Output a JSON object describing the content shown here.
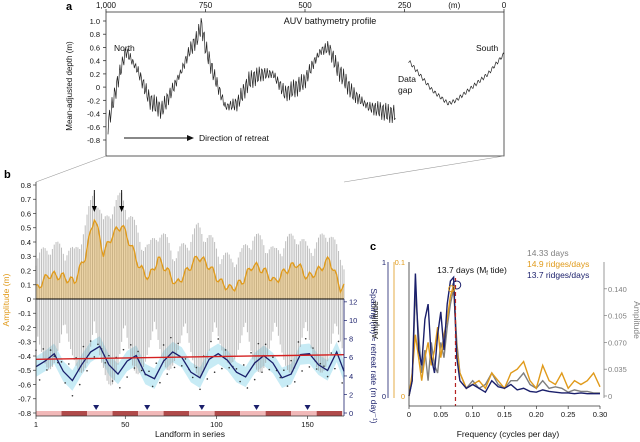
{
  "panel_labels": {
    "a": "a",
    "b": "b",
    "c": "c"
  },
  "colors": {
    "black": "#222222",
    "grey": "#8a8a8a",
    "orange": "#e09a1a",
    "navy": "#1a1f6b",
    "red": "#d42020",
    "cyan": "#b9e6f2",
    "darkred_dash": "#b52222",
    "light_grey": "#7f7f7f"
  },
  "chart_data": [
    {
      "panel": "a",
      "type": "line",
      "title": "AUV bathymetry profile",
      "top_axis_ticks": [
        "1,000",
        "750",
        "500",
        "250",
        "(m)",
        "0"
      ],
      "top_axis_values": [
        1000,
        750,
        500,
        250,
        0
      ],
      "xlim": [
        1000,
        0
      ],
      "ylabel": "Mean-adjusted depth (m)",
      "ylim": [
        -0.8,
        1.0
      ],
      "yticks": [
        "1.0",
        "0.8",
        "0.6",
        "0.4",
        "0.2",
        "0",
        "-0.2",
        "-0.4",
        "-0.6",
        "-0.8"
      ],
      "ytick_values": [
        1.0,
        0.8,
        0.6,
        0.4,
        0.2,
        0,
        -0.2,
        -0.4,
        -0.6,
        -0.8
      ],
      "annotations": {
        "north": "North",
        "south": "South",
        "gap": "Data gap",
        "retreat": "Direction of retreat"
      },
      "envelope": {
        "x": [
          1000,
          970,
          950,
          920,
          890,
          860,
          830,
          810,
          790,
          770,
          760,
          750,
          730,
          700,
          670,
          640,
          610,
          580,
          550,
          520,
          500,
          480,
          460,
          440,
          420,
          400,
          380,
          360,
          340,
          310,
          290,
          270
        ],
        "y": [
          -0.7,
          0.1,
          0.55,
          0.25,
          -0.2,
          -0.35,
          0.0,
          0.25,
          0.55,
          0.75,
          0.95,
          0.6,
          0.2,
          -0.3,
          -0.25,
          0.1,
          0.2,
          0.2,
          -0.1,
          0.0,
          0.1,
          0.35,
          0.55,
          0.6,
          0.3,
          0.1,
          -0.1,
          -0.2,
          -0.3,
          -0.35,
          -0.4,
          -0.4
        ]
      },
      "south_segment": {
        "x": [
          240,
          220,
          200,
          180,
          160,
          140,
          120,
          100,
          80,
          60,
          40,
          20,
          0
        ],
        "y": [
          0.4,
          0.25,
          0.1,
          -0.05,
          -0.15,
          -0.25,
          -0.2,
          -0.1,
          0.0,
          0.1,
          0.2,
          0.35,
          0.5
        ]
      }
    },
    {
      "panel": "b",
      "type": "line",
      "xlabel": "Landform in series",
      "ylabel_left": "Amplitude (m)",
      "ylabel_right": "Spacing (m) ≈ retreat rate (m day⁻¹)",
      "xlim": [
        1,
        170
      ],
      "xticks": [
        "1",
        "50",
        "100",
        "150"
      ],
      "xtick_values": [
        1,
        50,
        100,
        150
      ],
      "ylim_left": [
        -0.8,
        0.8
      ],
      "yticks_left": [
        "0.8",
        "0.7",
        "0.6",
        "0.5",
        "0.4",
        "0.3",
        "0.2",
        "0.1",
        "0",
        "-0.1",
        "-0.2",
        "-0.3",
        "-0.4",
        "-0.5",
        "-0.6",
        "-0.7",
        "-0.8"
      ],
      "ytick_values_left": [
        0.8,
        0.7,
        0.6,
        0.5,
        0.4,
        0.3,
        0.2,
        0.1,
        0,
        -0.1,
        -0.2,
        -0.3,
        -0.4,
        -0.5,
        -0.6,
        -0.7,
        -0.8
      ],
      "ylim_right": [
        0,
        12
      ],
      "yticks_right": [
        "12",
        "10",
        "8",
        "6",
        "4",
        "2",
        "0"
      ],
      "ytick_values_right": [
        12,
        10,
        8,
        6,
        4,
        2,
        0
      ],
      "amplitude_orange": {
        "x": [
          1,
          8,
          15,
          22,
          28,
          33,
          38,
          43,
          48,
          53,
          58,
          63,
          68,
          73,
          78,
          84,
          90,
          96,
          102,
          108,
          114,
          120,
          126,
          132,
          138,
          144,
          150,
          156,
          162,
          168
        ],
        "y": [
          0.07,
          0.17,
          0.16,
          0.12,
          0.3,
          0.58,
          0.32,
          0.45,
          0.52,
          0.38,
          0.22,
          0.15,
          0.28,
          0.2,
          0.1,
          0.2,
          0.3,
          0.23,
          0.12,
          0.07,
          0.12,
          0.24,
          0.2,
          0.12,
          0.2,
          0.25,
          0.15,
          0.2,
          0.28,
          0.08
        ]
      },
      "spacing_navy": {
        "x": [
          1,
          6,
          11,
          16,
          21,
          26,
          31,
          36,
          41,
          46,
          51,
          56,
          61,
          66,
          71,
          76,
          81,
          86,
          91,
          96,
          101,
          106,
          111,
          116,
          121,
          126,
          131,
          136,
          141,
          146,
          151,
          156,
          161,
          166,
          170
        ],
        "y": [
          5.0,
          5.6,
          6.4,
          4.5,
          3.5,
          5.2,
          6.6,
          7.2,
          5.2,
          4.2,
          5.6,
          6.2,
          4.2,
          3.7,
          5.6,
          6.6,
          6.0,
          4.4,
          3.8,
          5.8,
          6.4,
          5.7,
          4.4,
          3.9,
          5.4,
          6.2,
          5.4,
          3.8,
          4.2,
          6.3,
          6.4,
          5.2,
          4.6,
          6.6,
          4.5
        ]
      },
      "mean_red": {
        "x": [
          1,
          170
        ],
        "y": [
          5.8,
          6.3
        ]
      },
      "arrows_at": [
        33,
        48
      ]
    },
    {
      "panel": "c",
      "type": "line",
      "xlabel": "Frequency (cycles per day)",
      "ylabel_left": "Amplitude",
      "ylabel_right": "Amplitude",
      "xlim": [
        0,
        0.3
      ],
      "xticks": [
        "0",
        "0.05",
        "0.10",
        "0.15",
        "0.20",
        "0.25",
        "0.30"
      ],
      "xtick_values": [
        0,
        0.05,
        0.1,
        0.15,
        0.2,
        0.25,
        0.3
      ],
      "ylim_right": [
        0,
        0.175
      ],
      "yticks_right": [
        "0.140",
        "0.105",
        "0.070",
        "0.035",
        "0"
      ],
      "ytick_values_right": [
        0.14,
        0.105,
        0.07,
        0.035,
        0
      ],
      "yticks_left_navy": [
        "1",
        "0"
      ],
      "yticks_left_orange": [
        "0.1",
        "0"
      ],
      "vline": {
        "x": 0.073,
        "label": "13.7 days (M",
        "label_sub": "f",
        "label_tail": " tide)"
      },
      "legend": [
        {
          "name": "14.33 days",
          "color": "#7f7f7f"
        },
        {
          "name": "14.9 ridges/days",
          "color": "#e09a1a"
        },
        {
          "name": "13.7 ridges/days",
          "color": "#1a1f6b"
        }
      ],
      "series": [
        {
          "name": "14.33 days",
          "x": [
            0.0,
            0.005,
            0.01,
            0.015,
            0.02,
            0.025,
            0.03,
            0.035,
            0.04,
            0.045,
            0.05,
            0.055,
            0.06,
            0.065,
            0.07,
            0.075,
            0.08,
            0.09,
            0.1,
            0.11,
            0.12,
            0.13,
            0.14,
            0.15,
            0.16,
            0.17,
            0.18,
            0.19,
            0.2,
            0.21,
            0.22,
            0.23,
            0.24,
            0.25,
            0.26,
            0.27,
            0.28,
            0.29,
            0.3
          ],
          "y": [
            0.0,
            0.02,
            0.135,
            0.08,
            0.03,
            0.06,
            0.02,
            0.07,
            0.04,
            0.03,
            0.07,
            0.05,
            0.09,
            0.12,
            0.14,
            0.07,
            0.03,
            0.01,
            0.02,
            0.01,
            0.015,
            0.03,
            0.015,
            0.01,
            0.02,
            0.02,
            0.03,
            0.015,
            0.01,
            0.02,
            0.01,
            0.012,
            0.01,
            0.005,
            0.008,
            0.006,
            0.006,
            0.004,
            0.004
          ]
        },
        {
          "name": "14.9 ridges/days",
          "x": [
            0.0,
            0.005,
            0.01,
            0.015,
            0.02,
            0.025,
            0.03,
            0.035,
            0.04,
            0.045,
            0.05,
            0.055,
            0.06,
            0.065,
            0.07,
            0.075,
            0.08,
            0.09,
            0.1,
            0.11,
            0.12,
            0.13,
            0.14,
            0.15,
            0.16,
            0.17,
            0.18,
            0.19,
            0.2,
            0.21,
            0.22,
            0.23,
            0.24,
            0.25,
            0.26,
            0.27,
            0.28,
            0.29,
            0.3
          ],
          "y": [
            0.0,
            0.03,
            0.08,
            0.05,
            0.02,
            0.05,
            0.07,
            0.04,
            0.06,
            0.09,
            0.05,
            0.08,
            0.1,
            0.13,
            0.145,
            0.06,
            0.03,
            0.01,
            0.015,
            0.02,
            0.01,
            0.03,
            0.02,
            0.01,
            0.03,
            0.035,
            0.045,
            0.02,
            0.01,
            0.04,
            0.02,
            0.015,
            0.03,
            0.01,
            0.02,
            0.015,
            0.02,
            0.03,
            0.012
          ]
        },
        {
          "name": "13.7 ridges/days",
          "x": [
            0.0,
            0.005,
            0.01,
            0.015,
            0.02,
            0.025,
            0.03,
            0.035,
            0.04,
            0.045,
            0.05,
            0.055,
            0.06,
            0.065,
            0.07,
            0.075,
            0.08,
            0.09,
            0.1,
            0.11,
            0.12,
            0.13,
            0.14,
            0.15,
            0.16,
            0.17,
            0.18,
            0.19,
            0.2,
            0.21,
            0.22,
            0.23,
            0.24,
            0.25,
            0.26,
            0.27,
            0.28,
            0.29,
            0.3
          ],
          "y": [
            0.0,
            0.02,
            0.16,
            0.06,
            0.04,
            0.1,
            0.12,
            0.05,
            0.03,
            0.08,
            0.11,
            0.06,
            0.12,
            0.15,
            0.155,
            0.05,
            0.02,
            0.01,
            0.015,
            0.01,
            0.005,
            0.02,
            0.012,
            0.01,
            0.015,
            0.008,
            0.01,
            0.006,
            0.005,
            0.008,
            0.006,
            0.005,
            0.004,
            0.004,
            0.003,
            0.004,
            0.003,
            0.003,
            0.003
          ]
        }
      ]
    }
  ]
}
